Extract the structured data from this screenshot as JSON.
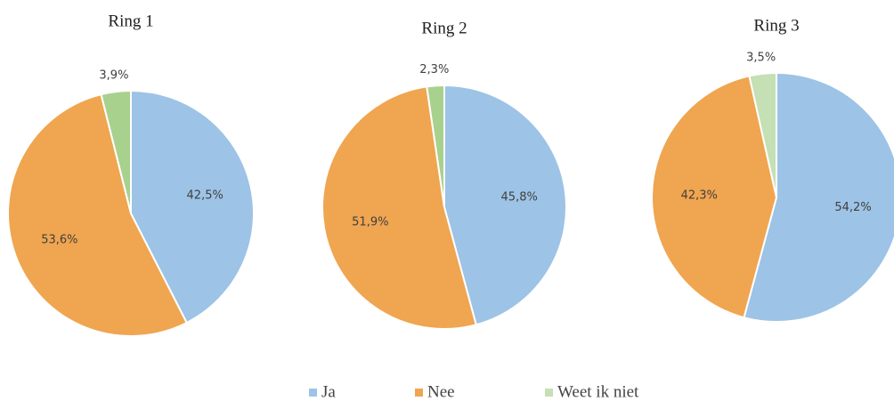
{
  "chart_data": [
    {
      "type": "pie",
      "title": "Ring 1",
      "values": [
        42.5,
        53.6,
        3.9
      ],
      "value_labels": [
        "42,5%",
        "53,6%",
        "3,9%"
      ],
      "colors": [
        "#9dc3e6",
        "#f0a550",
        "#a9d18e"
      ]
    },
    {
      "type": "pie",
      "title": "Ring 2",
      "values": [
        45.8,
        51.9,
        2.3
      ],
      "value_labels": [
        "45,8%",
        "51,9%",
        "2,3%"
      ],
      "colors": [
        "#9dc3e6",
        "#f0a550",
        "#a9d18e"
      ]
    },
    {
      "type": "pie",
      "title": "Ring 3",
      "values": [
        54.2,
        42.3,
        3.5
      ],
      "value_labels": [
        "54,2%",
        "42,3%",
        "3,5%"
      ],
      "colors": [
        "#9dc3e6",
        "#f0a550",
        "#c5e0b4"
      ]
    }
  ],
  "legend": {
    "names": [
      "Ja",
      "Nee",
      "Weet ik niet"
    ],
    "colors": [
      "#9dc3e6",
      "#f0a550",
      "#c5e0b4"
    ]
  }
}
